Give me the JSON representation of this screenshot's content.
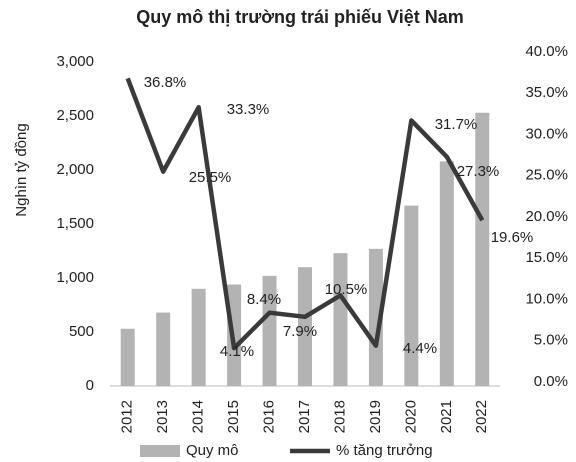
{
  "chart_data": {
    "type": "bar_line",
    "title": "Quy mô thị trường trái phiếu Việt Nam",
    "y_label": "Nghìn tỷ đồng",
    "categories": [
      "2012",
      "2013",
      "2014",
      "2015",
      "2016",
      "2017",
      "2018",
      "2019",
      "2020",
      "2021",
      "2022"
    ],
    "series": [
      {
        "name": "Quy mô",
        "type": "bar",
        "color": "#b3b3b3",
        "axis": "y",
        "values": [
          530,
          680,
          900,
          940,
          1020,
          1100,
          1230,
          1270,
          1670,
          2080,
          2530
        ]
      },
      {
        "name": "% tăng trưởng",
        "type": "line",
        "color": "#3a3a3a",
        "axis": "y2",
        "values": [
          36.8,
          25.5,
          33.3,
          4.1,
          8.4,
          7.9,
          10.5,
          4.4,
          31.7,
          27.3,
          19.6
        ],
        "value_labels": [
          "36.8%",
          "25.5%",
          "33.3%",
          "4.1%",
          "8.4%",
          "7.9%",
          "10.5%",
          "4.4%",
          "31.7%",
          "27.3%",
          "19.6%"
        ]
      }
    ],
    "ylim": [
      0,
      3000
    ],
    "yticks": [
      0,
      500,
      {
        "value": 1000,
        "label": "1,000"
      },
      {
        "value": 1500,
        "label": "1,500"
      },
      {
        "value": 2000,
        "label": "2,000"
      },
      {
        "value": 2500,
        "label": "2,500"
      },
      {
        "value": 3000,
        "label": "3,000"
      }
    ],
    "y2lim": [
      0,
      40
    ],
    "y2ticks": [
      {
        "value": 0,
        "label": "0.0%"
      },
      {
        "value": 5,
        "label": "5.0%"
      },
      {
        "value": 10,
        "label": "10.0%"
      },
      {
        "value": 15,
        "label": "15.0%"
      },
      {
        "value": 20,
        "label": "20.0%"
      },
      {
        "value": 25,
        "label": "25.0%"
      },
      {
        "value": 30,
        "label": "30.0%"
      },
      {
        "value": 35,
        "label": "35.0%"
      },
      {
        "value": 40,
        "label": "40.0%"
      }
    ],
    "legend": "bottom"
  }
}
